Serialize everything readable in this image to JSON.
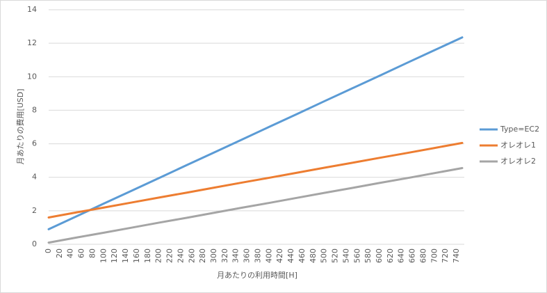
{
  "chart_data": {
    "type": "line",
    "x_label": "月あたりの利用時間[H]",
    "y_label": "月あたりの費用[USD]",
    "x": [
      0,
      50,
      100,
      150,
      200,
      250,
      300,
      350,
      400,
      450,
      500,
      550,
      600,
      650,
      700,
      750
    ],
    "series": [
      {
        "name": "Type=EC2",
        "color": "#5b9bd5",
        "values": [
          0.9,
          1.66,
          2.43,
          3.19,
          3.95,
          4.72,
          5.48,
          6.24,
          7.01,
          7.77,
          8.54,
          9.3,
          10.06,
          10.83,
          11.59,
          12.35
        ]
      },
      {
        "name": "オレオレ1",
        "color": "#ed7d31",
        "values": [
          1.6,
          1.9,
          2.19,
          2.49,
          2.79,
          3.08,
          3.38,
          3.68,
          3.97,
          4.27,
          4.57,
          4.86,
          5.16,
          5.45,
          5.75,
          6.05
        ]
      },
      {
        "name": "オレオレ2",
        "color": "#a5a5a5",
        "values": [
          0.1,
          0.4,
          0.69,
          0.99,
          1.29,
          1.58,
          1.88,
          2.18,
          2.47,
          2.77,
          3.07,
          3.36,
          3.66,
          3.95,
          4.25,
          4.55
        ]
      }
    ],
    "xlim": [
      0,
      750
    ],
    "xticks": [
      0,
      20,
      40,
      60,
      80,
      100,
      120,
      140,
      160,
      180,
      200,
      220,
      240,
      260,
      280,
      300,
      320,
      340,
      360,
      380,
      400,
      420,
      440,
      460,
      480,
      500,
      520,
      540,
      560,
      580,
      600,
      620,
      640,
      660,
      680,
      700,
      720,
      740
    ],
    "ylim": [
      0,
      14
    ],
    "yticks": [
      0,
      2,
      4,
      6,
      8,
      10,
      12,
      14
    ],
    "grid": true,
    "legend": "right"
  }
}
